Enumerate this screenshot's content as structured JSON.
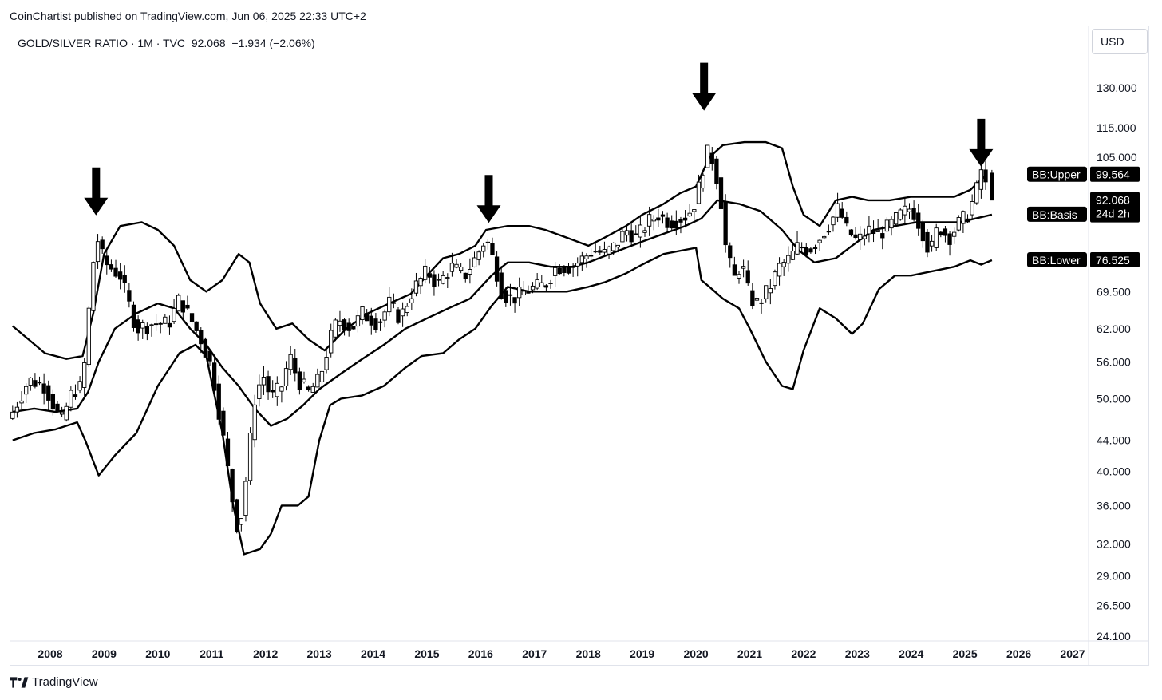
{
  "header": {
    "attribution": "CoinChartist published on TradingView.com, Jun 06, 2025 22:33 UTC+2"
  },
  "legend": {
    "text": "GOLD/SILVER RATIO · 1M · TVC  92.068  −1.934 (−2.06%)"
  },
  "currency": "USD",
  "footer": {
    "brand": "TradingView",
    "logo_icon": "tradingview-logo-icon"
  },
  "chart_data": {
    "type": "candlestick",
    "title": "GOLD/SILVER RATIO · 1M · TVC",
    "scale": "log",
    "ylim": [
      24.1,
      145
    ],
    "y_ticks": [
      130,
      115,
      105,
      99.564,
      92.068,
      88.045,
      76.525,
      69.5,
      62,
      56,
      50,
      44,
      40,
      36,
      32,
      29,
      26.5,
      24.1
    ],
    "y_tick_labels": [
      "130.000",
      "115.000",
      "105.000",
      "",
      "",
      "",
      "",
      "69.500",
      "62.000",
      "56.000",
      "50.000",
      "44.000",
      "40.000",
      "36.000",
      "32.000",
      "29.000",
      "26.500",
      "24.100"
    ],
    "x_labels": [
      "2008",
      "2009",
      "2010",
      "2011",
      "2012",
      "2013",
      "2014",
      "2015",
      "2016",
      "2017",
      "2018",
      "2019",
      "2020",
      "2021",
      "2022",
      "2023",
      "2024",
      "2025",
      "2026",
      "2027"
    ],
    "xlim": [
      2007.3,
      2027.2
    ],
    "last": {
      "value": "92.068",
      "countdown": "24d 2h",
      "change": "−1.934",
      "change_pct": "−2.06%"
    },
    "series": [
      {
        "name": "BB:Upper",
        "value": "99.564",
        "values": [
          [
            2007.3,
            62.5
          ],
          [
            2007.9,
            57.5
          ],
          [
            2008.3,
            56.5
          ],
          [
            2008.6,
            57
          ],
          [
            2008.8,
            65
          ],
          [
            2009.0,
            78
          ],
          [
            2009.3,
            85
          ],
          [
            2009.7,
            86
          ],
          [
            2010.0,
            84
          ],
          [
            2010.3,
            80
          ],
          [
            2010.6,
            72
          ],
          [
            2010.9,
            69.5
          ],
          [
            2011.2,
            72
          ],
          [
            2011.5,
            78
          ],
          [
            2011.7,
            76
          ],
          [
            2011.9,
            67
          ],
          [
            2012.2,
            62
          ],
          [
            2012.5,
            63
          ],
          [
            2012.8,
            60
          ],
          [
            2013.1,
            58
          ],
          [
            2013.5,
            62
          ],
          [
            2013.9,
            65
          ],
          [
            2014.3,
            67
          ],
          [
            2014.7,
            69
          ],
          [
            2015.0,
            73
          ],
          [
            2015.3,
            77
          ],
          [
            2015.6,
            78
          ],
          [
            2015.9,
            80
          ],
          [
            2016.1,
            84
          ],
          [
            2016.5,
            85
          ],
          [
            2016.9,
            85
          ],
          [
            2017.2,
            84
          ],
          [
            2017.6,
            82
          ],
          [
            2018.0,
            80
          ],
          [
            2018.3,
            82
          ],
          [
            2018.7,
            85
          ],
          [
            2019.0,
            88
          ],
          [
            2019.4,
            91
          ],
          [
            2019.7,
            94
          ],
          [
            2020.0,
            96
          ],
          [
            2020.25,
            105
          ],
          [
            2020.5,
            109
          ],
          [
            2020.9,
            110
          ],
          [
            2021.3,
            110
          ],
          [
            2021.6,
            108
          ],
          [
            2021.8,
            96
          ],
          [
            2022.0,
            88
          ],
          [
            2022.3,
            85
          ],
          [
            2022.6,
            92
          ],
          [
            2022.9,
            93
          ],
          [
            2023.2,
            92
          ],
          [
            2023.6,
            92
          ],
          [
            2024.0,
            93
          ],
          [
            2024.4,
            93
          ],
          [
            2024.8,
            93
          ],
          [
            2025.1,
            95
          ],
          [
            2025.4,
            99.6
          ]
        ]
      },
      {
        "name": "BB:Basis",
        "value": "88.045",
        "values": [
          [
            2007.3,
            48
          ],
          [
            2007.7,
            48.5
          ],
          [
            2008.1,
            48
          ],
          [
            2008.5,
            48.5
          ],
          [
            2008.7,
            51
          ],
          [
            2008.9,
            56
          ],
          [
            2009.2,
            62
          ],
          [
            2009.6,
            65
          ],
          [
            2010.0,
            67
          ],
          [
            2010.3,
            66
          ],
          [
            2010.6,
            62
          ],
          [
            2010.9,
            59
          ],
          [
            2011.2,
            55
          ],
          [
            2011.5,
            52
          ],
          [
            2011.8,
            48.5
          ],
          [
            2012.1,
            46
          ],
          [
            2012.4,
            47
          ],
          [
            2012.7,
            49
          ],
          [
            2013.0,
            51.5
          ],
          [
            2013.4,
            54
          ],
          [
            2013.8,
            56.5
          ],
          [
            2014.2,
            59
          ],
          [
            2014.6,
            62
          ],
          [
            2015.0,
            64
          ],
          [
            2015.4,
            66
          ],
          [
            2015.8,
            68
          ],
          [
            2016.2,
            73
          ],
          [
            2016.5,
            76
          ],
          [
            2016.9,
            76
          ],
          [
            2017.3,
            75
          ],
          [
            2017.7,
            75
          ],
          [
            2018.0,
            76
          ],
          [
            2018.3,
            77.5
          ],
          [
            2018.7,
            79.5
          ],
          [
            2019.0,
            81
          ],
          [
            2019.4,
            83
          ],
          [
            2019.8,
            85
          ],
          [
            2020.1,
            87
          ],
          [
            2020.4,
            92
          ],
          [
            2020.8,
            91
          ],
          [
            2021.2,
            89
          ],
          [
            2021.6,
            84
          ],
          [
            2021.9,
            79
          ],
          [
            2022.2,
            76
          ],
          [
            2022.6,
            77
          ],
          [
            2022.9,
            80
          ],
          [
            2023.3,
            84
          ],
          [
            2023.7,
            85
          ],
          [
            2024.1,
            86
          ],
          [
            2024.5,
            86
          ],
          [
            2024.9,
            86
          ],
          [
            2025.2,
            87
          ],
          [
            2025.5,
            88.045
          ]
        ]
      },
      {
        "name": "BB:Lower",
        "value": "76.525",
        "values": [
          [
            2007.3,
            44
          ],
          [
            2007.7,
            45
          ],
          [
            2008.1,
            45.5
          ],
          [
            2008.5,
            46.5
          ],
          [
            2008.65,
            44
          ],
          [
            2008.9,
            39.5
          ],
          [
            2009.2,
            42
          ],
          [
            2009.6,
            45
          ],
          [
            2010.0,
            52
          ],
          [
            2010.4,
            57.5
          ],
          [
            2010.7,
            59
          ],
          [
            2010.9,
            57
          ],
          [
            2011.2,
            45
          ],
          [
            2011.4,
            36
          ],
          [
            2011.6,
            31
          ],
          [
            2011.9,
            31.5
          ],
          [
            2012.1,
            33
          ],
          [
            2012.3,
            36
          ],
          [
            2012.6,
            36
          ],
          [
            2012.8,
            37
          ],
          [
            2013.0,
            44
          ],
          [
            2013.2,
            49
          ],
          [
            2013.4,
            50
          ],
          [
            2013.8,
            50.5
          ],
          [
            2014.2,
            52
          ],
          [
            2014.6,
            55
          ],
          [
            2014.9,
            57
          ],
          [
            2015.3,
            57.5
          ],
          [
            2015.6,
            60
          ],
          [
            2015.9,
            62
          ],
          [
            2016.2,
            66.5
          ],
          [
            2016.5,
            70.5
          ],
          [
            2016.9,
            69.5
          ],
          [
            2017.3,
            69.5
          ],
          [
            2017.6,
            69.5
          ],
          [
            2018.0,
            70.5
          ],
          [
            2018.3,
            71.5
          ],
          [
            2018.7,
            73.5
          ],
          [
            2019.0,
            75.5
          ],
          [
            2019.4,
            78
          ],
          [
            2019.8,
            79
          ],
          [
            2020.0,
            79.5
          ],
          [
            2020.1,
            72
          ],
          [
            2020.3,
            70
          ],
          [
            2020.5,
            68
          ],
          [
            2020.8,
            66
          ],
          [
            2021.0,
            62
          ],
          [
            2021.3,
            56
          ],
          [
            2021.6,
            52
          ],
          [
            2021.8,
            51.5
          ],
          [
            2022.0,
            58
          ],
          [
            2022.3,
            66
          ],
          [
            2022.6,
            64
          ],
          [
            2022.9,
            61
          ],
          [
            2023.1,
            63
          ],
          [
            2023.4,
            70
          ],
          [
            2023.7,
            73
          ],
          [
            2024.0,
            73
          ],
          [
            2024.4,
            74
          ],
          [
            2024.8,
            75
          ],
          [
            2025.1,
            76.5
          ],
          [
            2025.3,
            75.5
          ],
          [
            2025.5,
            76.525
          ]
        ]
      }
    ],
    "annotations": {
      "arrows_at": [
        [
          2008.85,
          87
        ],
        [
          2016.15,
          85
        ],
        [
          2020.15,
          120
        ],
        [
          2025.3,
          101
        ]
      ],
      "arrow_icon": "down-arrow-icon"
    },
    "price_path": [
      [
        2007.3,
        48
      ],
      [
        2007.6,
        53
      ],
      [
        2007.9,
        52
      ],
      [
        2008.2,
        46.5
      ],
      [
        2008.4,
        51
      ],
      [
        2008.6,
        52
      ],
      [
        2008.75,
        70
      ],
      [
        2008.85,
        83
      ],
      [
        2009.0,
        76
      ],
      [
        2009.3,
        73
      ],
      [
        2009.6,
        62
      ],
      [
        2009.9,
        63
      ],
      [
        2010.2,
        63
      ],
      [
        2010.4,
        68
      ],
      [
        2010.6,
        64
      ],
      [
        2010.8,
        60
      ],
      [
        2011.0,
        55
      ],
      [
        2011.2,
        45
      ],
      [
        2011.4,
        36
      ],
      [
        2011.5,
        33
      ],
      [
        2011.6,
        37
      ],
      [
        2011.7,
        43
      ],
      [
        2011.8,
        50
      ],
      [
        2011.95,
        54
      ],
      [
        2012.1,
        50
      ],
      [
        2012.3,
        52
      ],
      [
        2012.45,
        57
      ],
      [
        2012.6,
        53
      ],
      [
        2012.8,
        51
      ],
      [
        2013.0,
        53
      ],
      [
        2013.2,
        60
      ],
      [
        2013.35,
        64
      ],
      [
        2013.6,
        62
      ],
      [
        2013.8,
        65
      ],
      [
        2014.1,
        63
      ],
      [
        2014.3,
        67
      ],
      [
        2014.5,
        64
      ],
      [
        2014.75,
        70
      ],
      [
        2015.0,
        74
      ],
      [
        2015.2,
        71
      ],
      [
        2015.45,
        75
      ],
      [
        2015.7,
        73
      ],
      [
        2015.9,
        77
      ],
      [
        2016.1,
        82
      ],
      [
        2016.25,
        76
      ],
      [
        2016.4,
        69
      ],
      [
        2016.6,
        68
      ],
      [
        2016.9,
        70
      ],
      [
        2017.2,
        71
      ],
      [
        2017.4,
        75
      ],
      [
        2017.7,
        75
      ],
      [
        2017.9,
        77
      ],
      [
        2018.1,
        79
      ],
      [
        2018.3,
        78
      ],
      [
        2018.5,
        80
      ],
      [
        2018.7,
        84
      ],
      [
        2018.9,
        82
      ],
      [
        2019.1,
        86
      ],
      [
        2019.3,
        88
      ],
      [
        2019.5,
        86
      ],
      [
        2019.7,
        87
      ],
      [
        2019.85,
        88
      ],
      [
        2020.0,
        92
      ],
      [
        2020.15,
        103
      ],
      [
        2020.25,
        108
      ],
      [
        2020.35,
        101
      ],
      [
        2020.45,
        94
      ],
      [
        2020.55,
        80
      ],
      [
        2020.7,
        72
      ],
      [
        2020.85,
        76
      ],
      [
        2021.0,
        68
      ],
      [
        2021.15,
        67
      ],
      [
        2021.35,
        70
      ],
      [
        2021.55,
        75
      ],
      [
        2021.75,
        77
      ],
      [
        2021.9,
        80
      ],
      [
        2022.1,
        79
      ],
      [
        2022.3,
        82
      ],
      [
        2022.5,
        86
      ],
      [
        2022.65,
        90
      ],
      [
        2022.8,
        84
      ],
      [
        2023.0,
        81
      ],
      [
        2023.2,
        84
      ],
      [
        2023.4,
        83
      ],
      [
        2023.6,
        85
      ],
      [
        2023.8,
        88
      ],
      [
        2024.0,
        90
      ],
      [
        2024.2,
        84
      ],
      [
        2024.35,
        78
      ],
      [
        2024.5,
        85
      ],
      [
        2024.7,
        82
      ],
      [
        2024.9,
        86
      ],
      [
        2025.05,
        88
      ],
      [
        2025.2,
        94
      ],
      [
        2025.3,
        101
      ],
      [
        2025.42,
        94
      ],
      [
        2025.5,
        92.068
      ]
    ]
  }
}
